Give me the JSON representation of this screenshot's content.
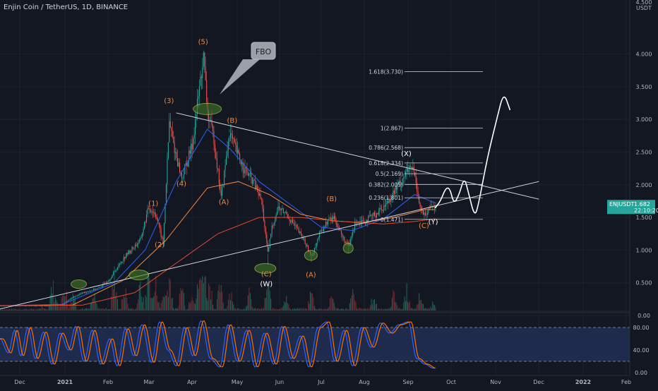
{
  "header": {
    "title": "Enjin Coin / TetherUS, 1D, BINANCE"
  },
  "price_axis": {
    "unit": "USDT",
    "top_label": "4.500",
    "ticks": [
      "4.000",
      "3.500",
      "3.000",
      "2.500",
      "2.000",
      "1.500",
      "1.000",
      "0.500",
      "0.00"
    ]
  },
  "badge": {
    "symbol": "ENJUSDT",
    "price": "1.682",
    "countdown": "22:10:20"
  },
  "osc_axis": {
    "ticks": [
      "80.00",
      "40.00",
      "0.00"
    ]
  },
  "time_axis": {
    "ticks": [
      "Dec",
      "2021",
      "Feb",
      "Mar",
      "Apr",
      "May",
      "Jun",
      "Jul",
      "Aug",
      "Sep",
      "Oct",
      "Nov",
      "Dec",
      "2022",
      "Feb"
    ]
  },
  "fib_levels": [
    {
      "label": "1.618(3.730)",
      "value": 3.73
    },
    {
      "label": "1(2.867)",
      "value": 2.867
    },
    {
      "label": "0.786(2.568)",
      "value": 2.568
    },
    {
      "label": "0.618(2.334)",
      "value": 2.334
    },
    {
      "label": "0.5(2.169)",
      "value": 2.169
    },
    {
      "label": "0.382(2.005)",
      "value": 2.005
    },
    {
      "label": "0.236(1.801)",
      "value": 1.801
    },
    {
      "label": "0(1.471)",
      "value": 1.471
    }
  ],
  "wave_labels": [
    {
      "text": "(1)",
      "t": 148,
      "price": 1.68,
      "color": "#f0883e"
    },
    {
      "text": "(2)",
      "t": 154,
      "price": 1.05,
      "color": "#f0883e"
    },
    {
      "text": "(3)",
      "t": 163,
      "price": 3.25,
      "color": "#f0883e"
    },
    {
      "text": "(4)",
      "t": 175,
      "price": 1.98,
      "color": "#f0883e"
    },
    {
      "text": "(5)",
      "t": 196,
      "price": 4.15,
      "color": "#f0883e"
    },
    {
      "text": "(B)",
      "t": 224,
      "price": 2.95,
      "color": "#f0883e"
    },
    {
      "text": "(A)",
      "t": 216,
      "price": 1.7,
      "color": "#f0883e"
    },
    {
      "text": "(C)",
      "t": 257,
      "price": 0.6,
      "color": "#f0883e"
    },
    {
      "text": "(W)",
      "t": 257,
      "price": 0.45,
      "color": "#ffffff"
    },
    {
      "text": "(A)",
      "t": 300,
      "price": 0.59,
      "color": "#f0883e"
    },
    {
      "text": "(B)",
      "t": 320,
      "price": 1.75,
      "color": "#f0883e"
    },
    {
      "text": "(X)",
      "t": 392,
      "price": 2.44,
      "color": "#ffffff"
    },
    {
      "text": "(C)",
      "t": 409,
      "price": 1.34,
      "color": "#f0883e"
    },
    {
      "text": "(Y)",
      "t": 418,
      "price": 1.4,
      "color": "#ffffff"
    }
  ],
  "callout": {
    "text": "FBO"
  },
  "oscillator": {
    "series": [
      {
        "name": "K",
        "color": "#2962ff"
      },
      {
        "name": "D",
        "color": "#ff6d00"
      }
    ],
    "levels": [
      80,
      20
    ]
  },
  "chart_data": {
    "type": "candlestick",
    "title": "Enjin Coin / TetherUS, 1D, BINANCE",
    "x_unit": "days since 2020-11-15",
    "y_range": [
      0,
      4.5
    ],
    "price_points": [
      {
        "t": 0,
        "price": 0.15
      },
      {
        "t": 45,
        "price": 0.15
      },
      {
        "t": 60,
        "price": 0.17
      },
      {
        "t": 70,
        "price": 0.28
      },
      {
        "t": 80,
        "price": 0.35
      },
      {
        "t": 95,
        "price": 0.42
      },
      {
        "t": 105,
        "price": 0.55
      },
      {
        "t": 120,
        "price": 0.9
      },
      {
        "t": 135,
        "price": 1.15
      },
      {
        "t": 143,
        "price": 1.65
      },
      {
        "t": 150,
        "price": 1.55
      },
      {
        "t": 157,
        "price": 1.1
      },
      {
        "t": 163,
        "price": 2.95
      },
      {
        "t": 168,
        "price": 2.55
      },
      {
        "t": 175,
        "price": 2.1
      },
      {
        "t": 185,
        "price": 2.6
      },
      {
        "t": 193,
        "price": 3.6
      },
      {
        "t": 196,
        "price": 3.95
      },
      {
        "t": 200,
        "price": 3.1
      },
      {
        "t": 206,
        "price": 2.7
      },
      {
        "t": 213,
        "price": 1.8
      },
      {
        "t": 221,
        "price": 2.8
      },
      {
        "t": 228,
        "price": 2.5
      },
      {
        "t": 235,
        "price": 2.25
      },
      {
        "t": 244,
        "price": 2.05
      },
      {
        "t": 252,
        "price": 1.75
      },
      {
        "t": 258,
        "price": 0.95
      },
      {
        "t": 262,
        "price": 1.35
      },
      {
        "t": 268,
        "price": 1.65
      },
      {
        "t": 276,
        "price": 1.55
      },
      {
        "t": 285,
        "price": 1.35
      },
      {
        "t": 293,
        "price": 1.15
      },
      {
        "t": 300,
        "price": 0.9
      },
      {
        "t": 308,
        "price": 1.25
      },
      {
        "t": 316,
        "price": 1.45
      },
      {
        "t": 322,
        "price": 1.5
      },
      {
        "t": 330,
        "price": 1.2
      },
      {
        "t": 336,
        "price": 1.05
      },
      {
        "t": 343,
        "price": 1.45
      },
      {
        "t": 352,
        "price": 1.45
      },
      {
        "t": 362,
        "price": 1.55
      },
      {
        "t": 372,
        "price": 1.7
      },
      {
        "t": 382,
        "price": 1.95
      },
      {
        "t": 392,
        "price": 2.2
      },
      {
        "t": 398,
        "price": 2.25
      },
      {
        "t": 401,
        "price": 2.05
      },
      {
        "t": 405,
        "price": 1.65
      },
      {
        "t": 410,
        "price": 1.5
      },
      {
        "t": 415,
        "price": 1.68
      },
      {
        "t": 420,
        "price": 1.68
      }
    ],
    "moving_averages": [
      {
        "name": "MA (short)",
        "color": "#2962ff",
        "points": [
          {
            "t": 0,
            "price": 0.15
          },
          {
            "t": 60,
            "price": 0.17
          },
          {
            "t": 110,
            "price": 0.5
          },
          {
            "t": 140,
            "price": 1.0
          },
          {
            "t": 170,
            "price": 2.05
          },
          {
            "t": 200,
            "price": 2.85
          },
          {
            "t": 222,
            "price": 2.55
          },
          {
            "t": 250,
            "price": 2.05
          },
          {
            "t": 280,
            "price": 1.7
          },
          {
            "t": 310,
            "price": 1.35
          },
          {
            "t": 340,
            "price": 1.3
          },
          {
            "t": 370,
            "price": 1.48
          },
          {
            "t": 400,
            "price": 1.85
          },
          {
            "t": 420,
            "price": 1.72
          }
        ]
      },
      {
        "name": "MA (mid)",
        "color": "#f0883e",
        "points": [
          {
            "t": 0,
            "price": 0.15
          },
          {
            "t": 70,
            "price": 0.16
          },
          {
            "t": 120,
            "price": 0.55
          },
          {
            "t": 160,
            "price": 1.15
          },
          {
            "t": 200,
            "price": 1.95
          },
          {
            "t": 230,
            "price": 2.05
          },
          {
            "t": 260,
            "price": 1.85
          },
          {
            "t": 290,
            "price": 1.55
          },
          {
            "t": 320,
            "price": 1.45
          },
          {
            "t": 350,
            "price": 1.42
          },
          {
            "t": 380,
            "price": 1.5
          },
          {
            "t": 410,
            "price": 1.62
          },
          {
            "t": 420,
            "price": 1.62
          }
        ]
      },
      {
        "name": "MA (long)",
        "color": "#e04b2a",
        "points": [
          {
            "t": 0,
            "price": 0.15
          },
          {
            "t": 80,
            "price": 0.16
          },
          {
            "t": 130,
            "price": 0.35
          },
          {
            "t": 170,
            "price": 0.8
          },
          {
            "t": 210,
            "price": 1.25
          },
          {
            "t": 250,
            "price": 1.5
          },
          {
            "t": 290,
            "price": 1.5
          },
          {
            "t": 330,
            "price": 1.44
          },
          {
            "t": 370,
            "price": 1.4
          },
          {
            "t": 400,
            "price": 1.44
          },
          {
            "t": 420,
            "price": 1.48
          }
        ]
      }
    ],
    "trendlines": [
      {
        "name": "descending",
        "from": {
          "t": 170,
          "price": 3.1
        },
        "to": {
          "t": 520,
          "price": 1.78
        }
      },
      {
        "name": "ascending",
        "from": {
          "t": 0,
          "price": 0.1
        },
        "to": {
          "t": 520,
          "price": 2.05
        }
      }
    ],
    "projection": [
      {
        "t": 420,
        "price": 1.65
      },
      {
        "t": 425,
        "price": 1.75
      },
      {
        "t": 430,
        "price": 1.95
      },
      {
        "t": 434,
        "price": 1.95
      },
      {
        "t": 438,
        "price": 1.7
      },
      {
        "t": 443,
        "price": 1.85
      },
      {
        "t": 448,
        "price": 2.12
      },
      {
        "t": 452,
        "price": 1.88
      },
      {
        "t": 458,
        "price": 1.5
      },
      {
        "t": 462,
        "price": 1.72
      },
      {
        "t": 470,
        "price": 2.4
      },
      {
        "t": 480,
        "price": 3.05
      },
      {
        "t": 486,
        "price": 3.42
      },
      {
        "t": 492,
        "price": 3.15
      }
    ],
    "volume": [
      {
        "t": 40,
        "v": 0.1
      },
      {
        "t": 50,
        "v": 0.6
      },
      {
        "t": 55,
        "v": 0.25
      },
      {
        "t": 62,
        "v": 0.55
      },
      {
        "t": 70,
        "v": 0.4
      },
      {
        "t": 90,
        "v": 0.3
      },
      {
        "t": 110,
        "v": 0.7
      },
      {
        "t": 120,
        "v": 0.45
      },
      {
        "t": 135,
        "v": 0.5
      },
      {
        "t": 143,
        "v": 0.8
      },
      {
        "t": 150,
        "v": 0.55
      },
      {
        "t": 158,
        "v": 0.4
      },
      {
        "t": 163,
        "v": 0.75
      },
      {
        "t": 175,
        "v": 0.55
      },
      {
        "t": 185,
        "v": 0.45
      },
      {
        "t": 192,
        "v": 0.7
      },
      {
        "t": 196,
        "v": 1.0
      },
      {
        "t": 202,
        "v": 0.6
      },
      {
        "t": 212,
        "v": 0.5
      },
      {
        "t": 222,
        "v": 0.45
      },
      {
        "t": 240,
        "v": 0.35
      },
      {
        "t": 258,
        "v": 0.55
      },
      {
        "t": 275,
        "v": 0.3
      },
      {
        "t": 300,
        "v": 0.4
      },
      {
        "t": 320,
        "v": 0.3
      },
      {
        "t": 340,
        "v": 0.35
      },
      {
        "t": 360,
        "v": 0.3
      },
      {
        "t": 380,
        "v": 0.4
      },
      {
        "t": 392,
        "v": 0.45
      },
      {
        "t": 405,
        "v": 0.35
      },
      {
        "t": 418,
        "v": 0.2
      }
    ],
    "stochastic": [
      {
        "t": 0,
        "k": 60
      },
      {
        "t": 8,
        "k": 35
      },
      {
        "t": 14,
        "k": 75
      },
      {
        "t": 20,
        "k": 30
      },
      {
        "t": 27,
        "k": 80
      },
      {
        "t": 34,
        "k": 25
      },
      {
        "t": 42,
        "k": 72
      },
      {
        "t": 50,
        "k": 15
      },
      {
        "t": 58,
        "k": 70
      },
      {
        "t": 66,
        "k": 40
      },
      {
        "t": 73,
        "k": 82
      },
      {
        "t": 81,
        "k": 20
      },
      {
        "t": 89,
        "k": 75
      },
      {
        "t": 97,
        "k": 15
      },
      {
        "t": 106,
        "k": 60
      },
      {
        "t": 113,
        "k": 12
      },
      {
        "t": 121,
        "k": 78
      },
      {
        "t": 129,
        "k": 30
      },
      {
        "t": 137,
        "k": 85
      },
      {
        "t": 146,
        "k": 18
      },
      {
        "t": 154,
        "k": 90
      },
      {
        "t": 162,
        "k": 40
      },
      {
        "t": 170,
        "k": 12
      },
      {
        "t": 178,
        "k": 80
      },
      {
        "t": 186,
        "k": 30
      },
      {
        "t": 194,
        "k": 92
      },
      {
        "t": 203,
        "k": 25
      },
      {
        "t": 212,
        "k": 10
      },
      {
        "t": 220,
        "k": 85
      },
      {
        "t": 229,
        "k": 20
      },
      {
        "t": 238,
        "k": 75
      },
      {
        "t": 246,
        "k": 10
      },
      {
        "t": 255,
        "k": 70
      },
      {
        "t": 264,
        "k": 15
      },
      {
        "t": 272,
        "k": 82
      },
      {
        "t": 281,
        "k": 25
      },
      {
        "t": 290,
        "k": 65
      },
      {
        "t": 298,
        "k": 10
      },
      {
        "t": 307,
        "k": 80
      },
      {
        "t": 315,
        "k": 90
      },
      {
        "t": 323,
        "k": 20
      },
      {
        "t": 332,
        "k": 75
      },
      {
        "t": 340,
        "k": 12
      },
      {
        "t": 349,
        "k": 80
      },
      {
        "t": 358,
        "k": 45
      },
      {
        "t": 367,
        "k": 88
      },
      {
        "t": 376,
        "k": 70
      },
      {
        "t": 385,
        "k": 85
      },
      {
        "t": 394,
        "k": 90
      },
      {
        "t": 402,
        "k": 25
      },
      {
        "t": 410,
        "k": 15
      },
      {
        "t": 418,
        "k": 8
      }
    ]
  }
}
